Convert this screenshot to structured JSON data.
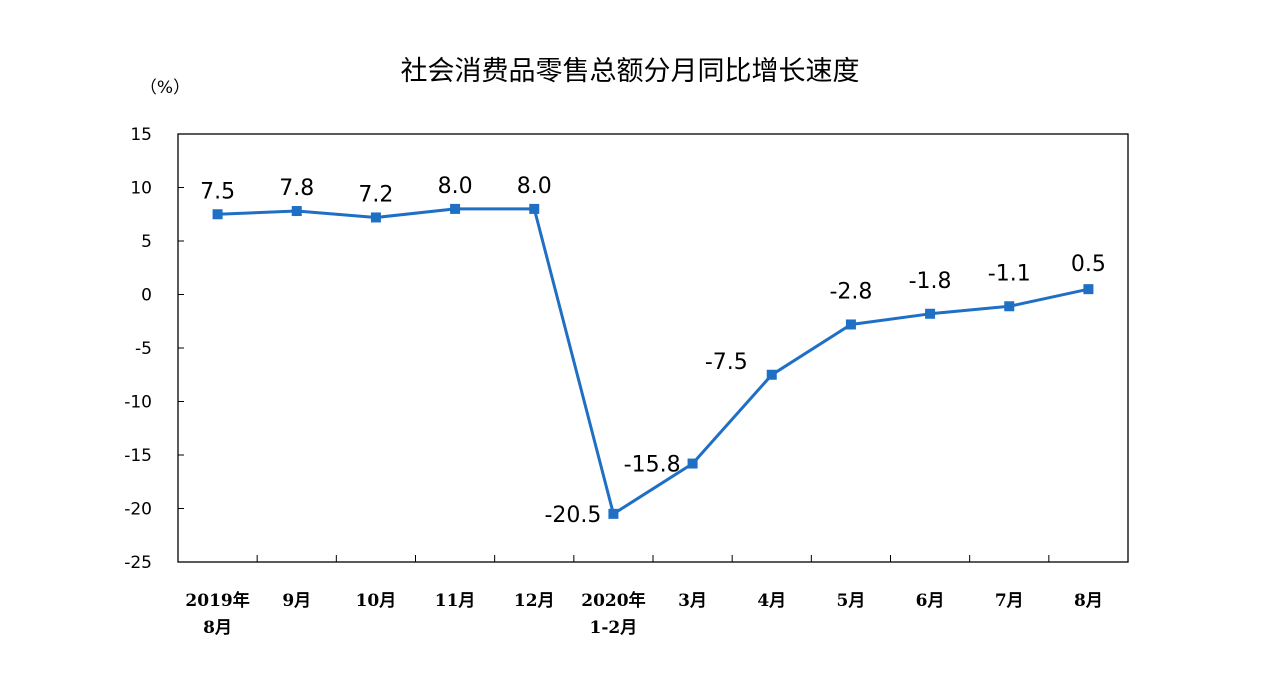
{
  "chart_data": {
    "type": "line",
    "title": "社会消费品零售总额分月同比增长速度",
    "unit_label": "（%）",
    "categories": [
      [
        "2019年",
        "8月"
      ],
      [
        "9月"
      ],
      [
        "10月"
      ],
      [
        "11月"
      ],
      [
        "12月"
      ],
      [
        "2020年",
        "1-2月"
      ],
      [
        "3月"
      ],
      [
        "4月"
      ],
      [
        "5月"
      ],
      [
        "6月"
      ],
      [
        "7月"
      ],
      [
        "8月"
      ]
    ],
    "series": [
      {
        "values": [
          7.5,
          7.8,
          7.2,
          8.0,
          8.0,
          -20.5,
          -15.8,
          -7.5,
          -2.8,
          -1.8,
          -1.1,
          0.5
        ],
        "labels": [
          "7.5",
          "7.8",
          "7.2",
          "8.0",
          "8.0",
          "-20.5",
          "-15.8",
          "-7.5",
          "-2.8",
          "-1.8",
          "-1.1",
          "0.5"
        ],
        "color": "#1f6fc5"
      }
    ],
    "ylim": [
      -25,
      15
    ],
    "yticks": [
      15,
      10,
      5,
      0,
      -5,
      -10,
      -15,
      -20,
      -25
    ],
    "grid": false,
    "legend": "none",
    "xlabel": "",
    "ylabel": ""
  }
}
